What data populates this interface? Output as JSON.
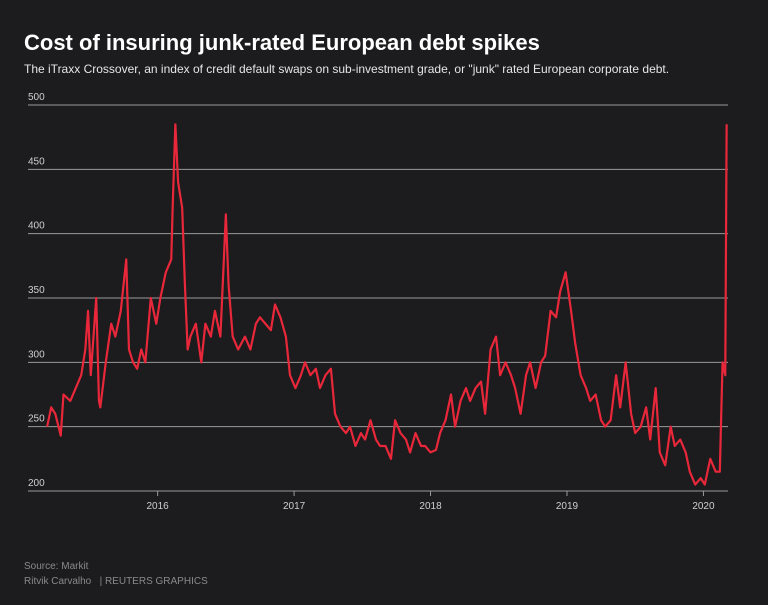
{
  "chart_data": {
    "type": "line",
    "title": "Cost of insuring junk-rated European debt spikes",
    "subtitle": "The iTraxx Crossover, an index of credit default swaps on sub-investment grade, or \"junk\" rated European corporate debt.",
    "source": "Source: Markit",
    "credit": "Ritvik Carvalho   | REUTERS GRAPHICS",
    "x": [
      2015.19,
      2015.22,
      2015.25,
      2015.29,
      2015.31,
      2015.36,
      2015.4,
      2015.44,
      2015.47,
      2015.49,
      2015.51,
      2015.53,
      2015.55,
      2015.57,
      2015.58,
      2015.62,
      2015.66,
      2015.69,
      2015.73,
      2015.77,
      2015.79,
      2015.82,
      2015.85,
      2015.88,
      2015.91,
      2015.95,
      2015.99,
      2016.02,
      2016.06,
      2016.1,
      2016.11,
      2016.13,
      2016.15,
      2016.18,
      2016.2,
      2016.22,
      2016.24,
      2016.28,
      2016.32,
      2016.35,
      2016.39,
      2016.42,
      2016.46,
      2016.5,
      2016.52,
      2016.55,
      2016.59,
      2016.64,
      2016.68,
      2016.72,
      2016.75,
      2016.79,
      2016.83,
      2016.86,
      2016.9,
      2016.94,
      2016.97,
      2017.01,
      2017.05,
      2017.08,
      2017.12,
      2017.16,
      2017.19,
      2017.23,
      2017.27,
      2017.3,
      2017.34,
      2017.38,
      2017.41,
      2017.45,
      2017.49,
      2017.52,
      2017.56,
      2017.6,
      2017.63,
      2017.67,
      2017.71,
      2017.74,
      2017.78,
      2017.82,
      2017.85,
      2017.89,
      2017.93,
      2017.96,
      2018.0,
      2018.04,
      2018.07,
      2018.11,
      2018.15,
      2018.18,
      2018.22,
      2018.26,
      2018.29,
      2018.33,
      2018.37,
      2018.4,
      2018.44,
      2018.48,
      2018.51,
      2018.55,
      2018.59,
      2018.62,
      2018.66,
      2018.7,
      2018.73,
      2018.77,
      2018.81,
      2018.84,
      2018.88,
      2018.92,
      2018.95,
      2018.99,
      2019.03,
      2019.06,
      2019.1,
      2019.14,
      2019.17,
      2019.21,
      2019.25,
      2019.28,
      2019.32,
      2019.36,
      2019.39,
      2019.43,
      2019.47,
      2019.5,
      2019.54,
      2019.58,
      2019.61,
      2019.65,
      2019.68,
      2019.72,
      2019.76,
      2019.79,
      2019.83,
      2019.87,
      2019.9,
      2019.94,
      2019.98,
      2020.01,
      2020.05,
      2020.09,
      2020.12,
      2020.14,
      2020.16,
      2020.17
    ],
    "series": [
      {
        "name": "iTraxx Crossover",
        "color": "#e8283a",
        "values": [
          250,
          265,
          260,
          243,
          275,
          270,
          280,
          290,
          310,
          340,
          290,
          320,
          350,
          270,
          265,
          300,
          330,
          320,
          340,
          380,
          310,
          300,
          295,
          310,
          300,
          350,
          330,
          350,
          370,
          380,
          420,
          485,
          440,
          420,
          360,
          310,
          320,
          330,
          300,
          330,
          320,
          340,
          320,
          415,
          360,
          320,
          310,
          320,
          310,
          330,
          335,
          330,
          325,
          345,
          335,
          320,
          290,
          280,
          290,
          300,
          290,
          295,
          280,
          290,
          295,
          260,
          250,
          245,
          250,
          235,
          245,
          240,
          255,
          240,
          235,
          235,
          225,
          255,
          245,
          240,
          230,
          245,
          235,
          235,
          230,
          232,
          245,
          255,
          275,
          250,
          270,
          280,
          270,
          280,
          285,
          260,
          310,
          320,
          290,
          300,
          290,
          280,
          260,
          290,
          300,
          280,
          300,
          305,
          340,
          335,
          355,
          370,
          340,
          315,
          290,
          280,
          270,
          275,
          255,
          250,
          255,
          290,
          265,
          300,
          260,
          245,
          250,
          265,
          240,
          280,
          230,
          220,
          250,
          235,
          240,
          230,
          215,
          205,
          210,
          205,
          225,
          215,
          215,
          300,
          290,
          485
        ]
      }
    ],
    "xlim": [
      2015.05,
      2020.18
    ],
    "xticks": [
      2016,
      2017,
      2018,
      2019,
      2020
    ],
    "ylim": [
      200,
      500
    ],
    "yticks": [
      200,
      250,
      300,
      350,
      400,
      450,
      500
    ],
    "grid": true
  }
}
